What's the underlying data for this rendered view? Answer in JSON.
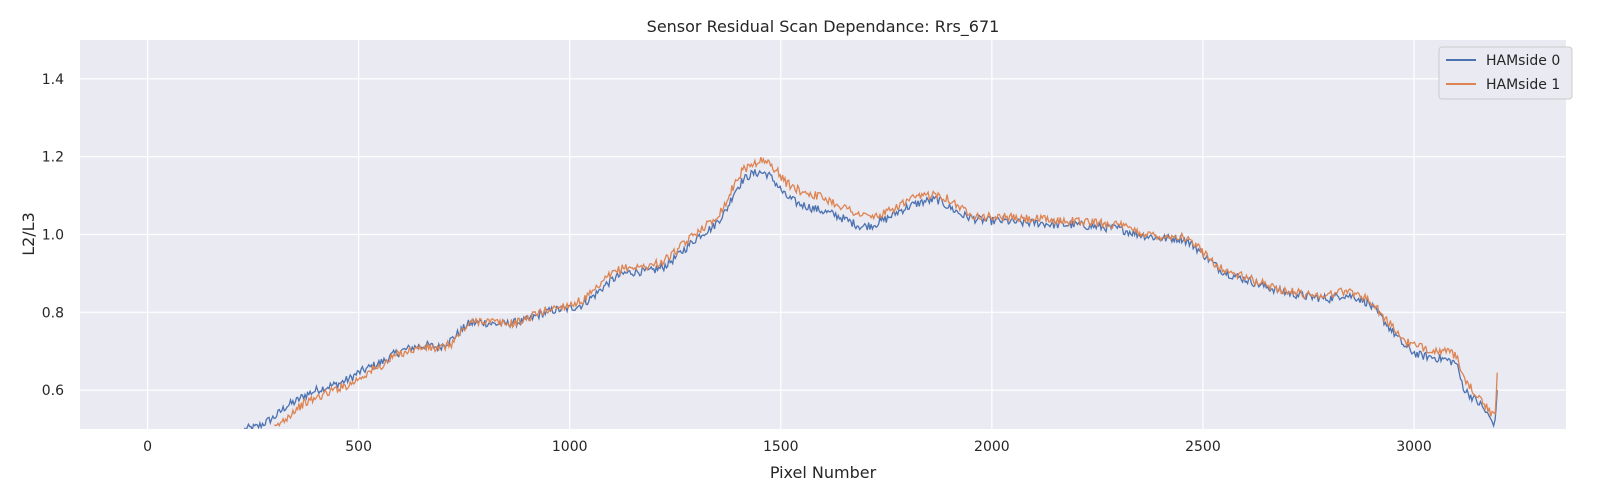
{
  "chart_data": {
    "type": "line",
    "title": "Sensor Residual Scan Dependance: Rrs_671",
    "xlabel": "Pixel Number",
    "ylabel": "L2/L3",
    "xlim": [
      -160,
      3360
    ],
    "ylim": [
      0.5,
      1.5
    ],
    "xticks": [
      0,
      500,
      1000,
      1500,
      2000,
      2500,
      3000
    ],
    "yticks": [
      0.6,
      0.8,
      1.0,
      1.2,
      1.4
    ],
    "xtick_labels": [
      "0",
      "500",
      "1000",
      "1500",
      "2000",
      "2500",
      "3000"
    ],
    "ytick_labels": [
      "0.6",
      "0.8",
      "1.0",
      "1.2",
      "1.4"
    ],
    "grid": true,
    "legend_position": "top-right",
    "background": "#eaeaf2",
    "series": [
      {
        "name": "HAMside 0",
        "color": "#4c72b0",
        "x": [
          230,
          260,
          300,
          330,
          350,
          370,
          400,
          430,
          450,
          480,
          500,
          530,
          560,
          580,
          600,
          630,
          660,
          690,
          720,
          740,
          760,
          790,
          820,
          850,
          880,
          900,
          930,
          960,
          1000,
          1030,
          1060,
          1090,
          1110,
          1130,
          1160,
          1190,
          1220,
          1250,
          1280,
          1310,
          1340,
          1370,
          1390,
          1410,
          1430,
          1450,
          1470,
          1490,
          1510,
          1540,
          1570,
          1600,
          1630,
          1660,
          1690,
          1720,
          1750,
          1780,
          1810,
          1840,
          1870,
          1900,
          1930,
          1960,
          1990,
          2030,
          2070,
          2110,
          2150,
          2200,
          2250,
          2300,
          2350,
          2400,
          2450,
          2480,
          2510,
          2540,
          2570,
          2600,
          2650,
          2700,
          2750,
          2800,
          2830,
          2860,
          2890,
          2920,
          2950,
          2980,
          3010,
          3040,
          3070,
          3100,
          3110,
          3120,
          3140,
          3160,
          3175,
          3185,
          3192,
          3197
        ],
        "y": [
          0.5,
          0.505,
          0.53,
          0.56,
          0.57,
          0.585,
          0.6,
          0.61,
          0.615,
          0.63,
          0.645,
          0.66,
          0.675,
          0.69,
          0.7,
          0.71,
          0.715,
          0.71,
          0.73,
          0.75,
          0.77,
          0.775,
          0.77,
          0.77,
          0.775,
          0.78,
          0.795,
          0.805,
          0.81,
          0.82,
          0.845,
          0.875,
          0.89,
          0.9,
          0.905,
          0.905,
          0.915,
          0.94,
          0.97,
          1.0,
          1.02,
          1.06,
          1.11,
          1.14,
          1.155,
          1.16,
          1.155,
          1.13,
          1.1,
          1.08,
          1.07,
          1.06,
          1.05,
          1.035,
          1.02,
          1.025,
          1.04,
          1.06,
          1.075,
          1.085,
          1.09,
          1.07,
          1.05,
          1.04,
          1.035,
          1.035,
          1.03,
          1.03,
          1.025,
          1.025,
          1.02,
          1.015,
          1.0,
          0.99,
          0.99,
          0.97,
          0.94,
          0.91,
          0.895,
          0.885,
          0.865,
          0.85,
          0.84,
          0.835,
          0.845,
          0.84,
          0.825,
          0.79,
          0.75,
          0.71,
          0.69,
          0.685,
          0.68,
          0.67,
          0.63,
          0.6,
          0.58,
          0.56,
          0.535,
          0.52,
          0.515,
          0.6
        ]
      },
      {
        "name": "HAMside 1",
        "color": "#dd8452",
        "x": [
          300,
          330,
          350,
          370,
          400,
          430,
          450,
          480,
          500,
          530,
          560,
          580,
          600,
          630,
          660,
          690,
          720,
          740,
          760,
          790,
          820,
          850,
          880,
          900,
          930,
          960,
          1000,
          1030,
          1060,
          1090,
          1110,
          1130,
          1160,
          1190,
          1220,
          1250,
          1280,
          1310,
          1340,
          1370,
          1390,
          1410,
          1430,
          1450,
          1470,
          1490,
          1510,
          1540,
          1570,
          1600,
          1630,
          1660,
          1690,
          1720,
          1750,
          1780,
          1810,
          1840,
          1870,
          1900,
          1930,
          1960,
          1990,
          2030,
          2070,
          2110,
          2150,
          2200,
          2250,
          2300,
          2350,
          2400,
          2450,
          2480,
          2510,
          2540,
          2570,
          2600,
          2650,
          2700,
          2750,
          2800,
          2830,
          2860,
          2890,
          2920,
          2950,
          2980,
          3010,
          3040,
          3070,
          3100,
          3110,
          3120,
          3140,
          3160,
          3175,
          3185,
          3192,
          3197
        ],
        "y": [
          0.5,
          0.53,
          0.55,
          0.565,
          0.58,
          0.595,
          0.605,
          0.615,
          0.63,
          0.65,
          0.665,
          0.685,
          0.695,
          0.705,
          0.71,
          0.705,
          0.72,
          0.745,
          0.77,
          0.78,
          0.775,
          0.77,
          0.775,
          0.785,
          0.8,
          0.81,
          0.82,
          0.83,
          0.855,
          0.89,
          0.905,
          0.915,
          0.915,
          0.92,
          0.93,
          0.955,
          0.985,
          1.015,
          1.035,
          1.08,
          1.13,
          1.165,
          1.18,
          1.19,
          1.185,
          1.165,
          1.135,
          1.115,
          1.105,
          1.095,
          1.08,
          1.065,
          1.05,
          1.045,
          1.055,
          1.075,
          1.09,
          1.1,
          1.105,
          1.09,
          1.065,
          1.05,
          1.045,
          1.045,
          1.04,
          1.04,
          1.035,
          1.035,
          1.03,
          1.025,
          1.005,
          0.995,
          0.995,
          0.975,
          0.945,
          0.915,
          0.9,
          0.89,
          0.87,
          0.855,
          0.845,
          0.845,
          0.855,
          0.85,
          0.835,
          0.8,
          0.76,
          0.725,
          0.71,
          0.705,
          0.7,
          0.69,
          0.65,
          0.62,
          0.6,
          0.575,
          0.55,
          0.535,
          0.53,
          0.645
        ]
      }
    ]
  }
}
